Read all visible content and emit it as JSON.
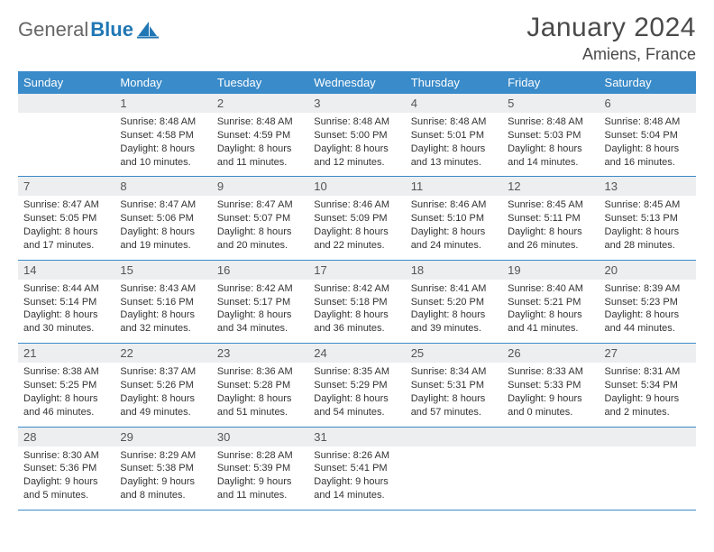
{
  "brand": {
    "part1": "General",
    "part2": "Blue"
  },
  "title": "January 2024",
  "location": "Amiens, France",
  "colors": {
    "header_bg": "#3a8bc9",
    "daynum_bg": "#eceef0",
    "text": "#333333",
    "brand_gray": "#666666",
    "brand_blue": "#2077b4",
    "row_border": "#3a8bc9"
  },
  "day_headers": [
    "Sunday",
    "Monday",
    "Tuesday",
    "Wednesday",
    "Thursday",
    "Friday",
    "Saturday"
  ],
  "weeks": [
    [
      null,
      {
        "n": "1",
        "sr": "Sunrise: 8:48 AM",
        "ss": "Sunset: 4:58 PM",
        "d1": "Daylight: 8 hours",
        "d2": "and 10 minutes."
      },
      {
        "n": "2",
        "sr": "Sunrise: 8:48 AM",
        "ss": "Sunset: 4:59 PM",
        "d1": "Daylight: 8 hours",
        "d2": "and 11 minutes."
      },
      {
        "n": "3",
        "sr": "Sunrise: 8:48 AM",
        "ss": "Sunset: 5:00 PM",
        "d1": "Daylight: 8 hours",
        "d2": "and 12 minutes."
      },
      {
        "n": "4",
        "sr": "Sunrise: 8:48 AM",
        "ss": "Sunset: 5:01 PM",
        "d1": "Daylight: 8 hours",
        "d2": "and 13 minutes."
      },
      {
        "n": "5",
        "sr": "Sunrise: 8:48 AM",
        "ss": "Sunset: 5:03 PM",
        "d1": "Daylight: 8 hours",
        "d2": "and 14 minutes."
      },
      {
        "n": "6",
        "sr": "Sunrise: 8:48 AM",
        "ss": "Sunset: 5:04 PM",
        "d1": "Daylight: 8 hours",
        "d2": "and 16 minutes."
      }
    ],
    [
      {
        "n": "7",
        "sr": "Sunrise: 8:47 AM",
        "ss": "Sunset: 5:05 PM",
        "d1": "Daylight: 8 hours",
        "d2": "and 17 minutes."
      },
      {
        "n": "8",
        "sr": "Sunrise: 8:47 AM",
        "ss": "Sunset: 5:06 PM",
        "d1": "Daylight: 8 hours",
        "d2": "and 19 minutes."
      },
      {
        "n": "9",
        "sr": "Sunrise: 8:47 AM",
        "ss": "Sunset: 5:07 PM",
        "d1": "Daylight: 8 hours",
        "d2": "and 20 minutes."
      },
      {
        "n": "10",
        "sr": "Sunrise: 8:46 AM",
        "ss": "Sunset: 5:09 PM",
        "d1": "Daylight: 8 hours",
        "d2": "and 22 minutes."
      },
      {
        "n": "11",
        "sr": "Sunrise: 8:46 AM",
        "ss": "Sunset: 5:10 PM",
        "d1": "Daylight: 8 hours",
        "d2": "and 24 minutes."
      },
      {
        "n": "12",
        "sr": "Sunrise: 8:45 AM",
        "ss": "Sunset: 5:11 PM",
        "d1": "Daylight: 8 hours",
        "d2": "and 26 minutes."
      },
      {
        "n": "13",
        "sr": "Sunrise: 8:45 AM",
        "ss": "Sunset: 5:13 PM",
        "d1": "Daylight: 8 hours",
        "d2": "and 28 minutes."
      }
    ],
    [
      {
        "n": "14",
        "sr": "Sunrise: 8:44 AM",
        "ss": "Sunset: 5:14 PM",
        "d1": "Daylight: 8 hours",
        "d2": "and 30 minutes."
      },
      {
        "n": "15",
        "sr": "Sunrise: 8:43 AM",
        "ss": "Sunset: 5:16 PM",
        "d1": "Daylight: 8 hours",
        "d2": "and 32 minutes."
      },
      {
        "n": "16",
        "sr": "Sunrise: 8:42 AM",
        "ss": "Sunset: 5:17 PM",
        "d1": "Daylight: 8 hours",
        "d2": "and 34 minutes."
      },
      {
        "n": "17",
        "sr": "Sunrise: 8:42 AM",
        "ss": "Sunset: 5:18 PM",
        "d1": "Daylight: 8 hours",
        "d2": "and 36 minutes."
      },
      {
        "n": "18",
        "sr": "Sunrise: 8:41 AM",
        "ss": "Sunset: 5:20 PM",
        "d1": "Daylight: 8 hours",
        "d2": "and 39 minutes."
      },
      {
        "n": "19",
        "sr": "Sunrise: 8:40 AM",
        "ss": "Sunset: 5:21 PM",
        "d1": "Daylight: 8 hours",
        "d2": "and 41 minutes."
      },
      {
        "n": "20",
        "sr": "Sunrise: 8:39 AM",
        "ss": "Sunset: 5:23 PM",
        "d1": "Daylight: 8 hours",
        "d2": "and 44 minutes."
      }
    ],
    [
      {
        "n": "21",
        "sr": "Sunrise: 8:38 AM",
        "ss": "Sunset: 5:25 PM",
        "d1": "Daylight: 8 hours",
        "d2": "and 46 minutes."
      },
      {
        "n": "22",
        "sr": "Sunrise: 8:37 AM",
        "ss": "Sunset: 5:26 PM",
        "d1": "Daylight: 8 hours",
        "d2": "and 49 minutes."
      },
      {
        "n": "23",
        "sr": "Sunrise: 8:36 AM",
        "ss": "Sunset: 5:28 PM",
        "d1": "Daylight: 8 hours",
        "d2": "and 51 minutes."
      },
      {
        "n": "24",
        "sr": "Sunrise: 8:35 AM",
        "ss": "Sunset: 5:29 PM",
        "d1": "Daylight: 8 hours",
        "d2": "and 54 minutes."
      },
      {
        "n": "25",
        "sr": "Sunrise: 8:34 AM",
        "ss": "Sunset: 5:31 PM",
        "d1": "Daylight: 8 hours",
        "d2": "and 57 minutes."
      },
      {
        "n": "26",
        "sr": "Sunrise: 8:33 AM",
        "ss": "Sunset: 5:33 PM",
        "d1": "Daylight: 9 hours",
        "d2": "and 0 minutes."
      },
      {
        "n": "27",
        "sr": "Sunrise: 8:31 AM",
        "ss": "Sunset: 5:34 PM",
        "d1": "Daylight: 9 hours",
        "d2": "and 2 minutes."
      }
    ],
    [
      {
        "n": "28",
        "sr": "Sunrise: 8:30 AM",
        "ss": "Sunset: 5:36 PM",
        "d1": "Daylight: 9 hours",
        "d2": "and 5 minutes."
      },
      {
        "n": "29",
        "sr": "Sunrise: 8:29 AM",
        "ss": "Sunset: 5:38 PM",
        "d1": "Daylight: 9 hours",
        "d2": "and 8 minutes."
      },
      {
        "n": "30",
        "sr": "Sunrise: 8:28 AM",
        "ss": "Sunset: 5:39 PM",
        "d1": "Daylight: 9 hours",
        "d2": "and 11 minutes."
      },
      {
        "n": "31",
        "sr": "Sunrise: 8:26 AM",
        "ss": "Sunset: 5:41 PM",
        "d1": "Daylight: 9 hours",
        "d2": "and 14 minutes."
      },
      null,
      null,
      null
    ]
  ]
}
